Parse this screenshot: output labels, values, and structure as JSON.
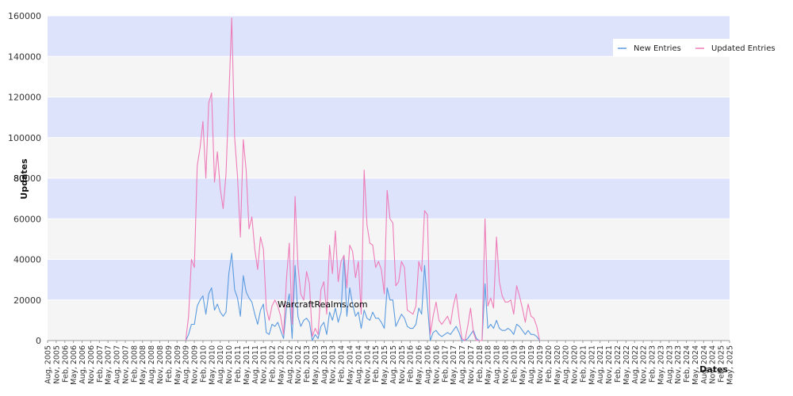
{
  "chart_data": {
    "type": "line",
    "xlabel": "Dates",
    "ylabel": "Updates",
    "ylabel_overlay": "80",
    "watermark": "WarcraftRealms.com",
    "ylim": [
      0,
      160000
    ],
    "y_ticks": [
      0,
      20000,
      40000,
      60000,
      80000,
      100000,
      120000,
      140000,
      160000
    ],
    "y_tick_labels": [
      "0",
      "20000",
      "40000",
      "60000",
      "80000",
      "100000",
      "120000",
      "140000",
      "160000"
    ],
    "x_start": "2005-08",
    "x_end": "2025-05",
    "grid": true,
    "band_colors": [
      "#f5f5f5",
      "#dde3fb"
    ],
    "legend_position": "top-right",
    "series": [
      {
        "name": "New Entries",
        "color": "#5b9bdf",
        "points": [
          [
            "2009-08",
            0
          ],
          [
            "2009-09",
            3000
          ],
          [
            "2009-10",
            8000
          ],
          [
            "2009-11",
            8000
          ],
          [
            "2009-12",
            17000
          ],
          [
            "2010-01",
            20000
          ],
          [
            "2010-02",
            22000
          ],
          [
            "2010-03",
            13000
          ],
          [
            "2010-04",
            23000
          ],
          [
            "2010-05",
            26000
          ],
          [
            "2010-06",
            15000
          ],
          [
            "2010-07",
            18000
          ],
          [
            "2010-08",
            14000
          ],
          [
            "2010-09",
            12000
          ],
          [
            "2010-10",
            14000
          ],
          [
            "2010-11",
            33000
          ],
          [
            "2010-12",
            43000
          ],
          [
            "2011-01",
            25000
          ],
          [
            "2011-02",
            21000
          ],
          [
            "2011-03",
            12000
          ],
          [
            "2011-04",
            32000
          ],
          [
            "2011-05",
            24000
          ],
          [
            "2011-06",
            21000
          ],
          [
            "2011-07",
            19000
          ],
          [
            "2011-08",
            13000
          ],
          [
            "2011-09",
            8000
          ],
          [
            "2011-10",
            15000
          ],
          [
            "2011-11",
            18000
          ],
          [
            "2011-12",
            4000
          ],
          [
            "2012-01",
            3000
          ],
          [
            "2012-02",
            8000
          ],
          [
            "2012-03",
            7000
          ],
          [
            "2012-04",
            9000
          ],
          [
            "2012-05",
            5000
          ],
          [
            "2012-06",
            1000
          ],
          [
            "2012-07",
            16000
          ],
          [
            "2012-08",
            23000
          ],
          [
            "2012-09",
            1000
          ],
          [
            "2012-10",
            37000
          ],
          [
            "2012-11",
            12000
          ],
          [
            "2012-12",
            7000
          ],
          [
            "2013-01",
            10000
          ],
          [
            "2013-02",
            11000
          ],
          [
            "2013-03",
            9000
          ],
          [
            "2013-04",
            0
          ],
          [
            "2013-05",
            3000
          ],
          [
            "2013-06",
            1000
          ],
          [
            "2013-07",
            7000
          ],
          [
            "2013-08",
            9000
          ],
          [
            "2013-09",
            3000
          ],
          [
            "2013-10",
            14000
          ],
          [
            "2013-11",
            10000
          ],
          [
            "2013-12",
            16000
          ],
          [
            "2014-01",
            9000
          ],
          [
            "2014-02",
            14000
          ],
          [
            "2014-03",
            42000
          ],
          [
            "2014-04",
            12000
          ],
          [
            "2014-05",
            26000
          ],
          [
            "2014-06",
            18000
          ],
          [
            "2014-07",
            12000
          ],
          [
            "2014-08",
            14000
          ],
          [
            "2014-09",
            6000
          ],
          [
            "2014-10",
            15000
          ],
          [
            "2014-11",
            11000
          ],
          [
            "2014-12",
            10000
          ],
          [
            "2015-01",
            14000
          ],
          [
            "2015-02",
            11000
          ],
          [
            "2015-03",
            11000
          ],
          [
            "2015-04",
            9000
          ],
          [
            "2015-05",
            6000
          ],
          [
            "2015-06",
            26000
          ],
          [
            "2015-07",
            20000
          ],
          [
            "2015-08",
            20000
          ],
          [
            "2015-09",
            7000
          ],
          [
            "2015-10",
            10000
          ],
          [
            "2015-11",
            13000
          ],
          [
            "2015-12",
            11000
          ],
          [
            "2016-01",
            7000
          ],
          [
            "2016-02",
            6000
          ],
          [
            "2016-03",
            6000
          ],
          [
            "2016-04",
            8000
          ],
          [
            "2016-05",
            16000
          ],
          [
            "2016-06",
            13000
          ],
          [
            "2016-07",
            37000
          ],
          [
            "2016-08",
            18000
          ],
          [
            "2016-09",
            0
          ],
          [
            "2016-10",
            4000
          ],
          [
            "2016-11",
            5000
          ],
          [
            "2016-12",
            3000
          ],
          [
            "2017-01",
            2000
          ],
          [
            "2017-02",
            3000
          ],
          [
            "2017-03",
            4000
          ],
          [
            "2017-04",
            3000
          ],
          [
            "2017-05",
            5000
          ],
          [
            "2017-06",
            7000
          ],
          [
            "2017-07",
            4000
          ],
          [
            "2017-08",
            0
          ],
          [
            "2017-09",
            0
          ],
          [
            "2017-10",
            1000
          ],
          [
            "2017-11",
            3000
          ],
          [
            "2017-12",
            5000
          ],
          [
            "2018-01",
            1000
          ],
          [
            "2018-02",
            0
          ],
          [
            "2018-03",
            0
          ],
          [
            "2018-04",
            28000
          ],
          [
            "2018-05",
            6000
          ],
          [
            "2018-06",
            8000
          ],
          [
            "2018-07",
            6000
          ],
          [
            "2018-08",
            10000
          ],
          [
            "2018-09",
            6000
          ],
          [
            "2018-10",
            5000
          ],
          [
            "2018-11",
            5000
          ],
          [
            "2018-12",
            6000
          ],
          [
            "2019-01",
            5000
          ],
          [
            "2019-02",
            3000
          ],
          [
            "2019-03",
            8000
          ],
          [
            "2019-04",
            7000
          ],
          [
            "2019-05",
            5000
          ],
          [
            "2019-06",
            3000
          ],
          [
            "2019-07",
            5000
          ],
          [
            "2019-08",
            3000
          ],
          [
            "2019-09",
            3000
          ],
          [
            "2019-10",
            2000
          ],
          [
            "2019-11",
            0
          ]
        ]
      },
      {
        "name": "Updated Entries",
        "color": "#ee7cb8",
        "points": [
          [
            "2009-08",
            0
          ],
          [
            "2009-09",
            12000
          ],
          [
            "2009-10",
            40000
          ],
          [
            "2009-11",
            36000
          ],
          [
            "2009-12",
            86000
          ],
          [
            "2010-01",
            95000
          ],
          [
            "2010-02",
            108000
          ],
          [
            "2010-03",
            80000
          ],
          [
            "2010-04",
            117000
          ],
          [
            "2010-05",
            122000
          ],
          [
            "2010-06",
            78000
          ],
          [
            "2010-07",
            93000
          ],
          [
            "2010-08",
            75000
          ],
          [
            "2010-09",
            65000
          ],
          [
            "2010-10",
            82000
          ],
          [
            "2010-11",
            120000
          ],
          [
            "2010-12",
            159000
          ],
          [
            "2011-01",
            100000
          ],
          [
            "2011-02",
            81000
          ],
          [
            "2011-03",
            51000
          ],
          [
            "2011-04",
            99000
          ],
          [
            "2011-05",
            84000
          ],
          [
            "2011-06",
            55000
          ],
          [
            "2011-07",
            61000
          ],
          [
            "2011-08",
            45000
          ],
          [
            "2011-09",
            35000
          ],
          [
            "2011-10",
            51000
          ],
          [
            "2011-11",
            45000
          ],
          [
            "2011-12",
            16000
          ],
          [
            "2012-01",
            10000
          ],
          [
            "2012-02",
            17000
          ],
          [
            "2012-03",
            20000
          ],
          [
            "2012-04",
            17000
          ],
          [
            "2012-05",
            12000
          ],
          [
            "2012-06",
            3000
          ],
          [
            "2012-07",
            30000
          ],
          [
            "2012-08",
            48000
          ],
          [
            "2012-09",
            8000
          ],
          [
            "2012-10",
            71000
          ],
          [
            "2012-11",
            37000
          ],
          [
            "2012-12",
            23000
          ],
          [
            "2013-01",
            20000
          ],
          [
            "2013-02",
            34000
          ],
          [
            "2013-03",
            28000
          ],
          [
            "2013-04",
            2000
          ],
          [
            "2013-05",
            6000
          ],
          [
            "2013-06",
            3000
          ],
          [
            "2013-07",
            25000
          ],
          [
            "2013-08",
            29000
          ],
          [
            "2013-09",
            13000
          ],
          [
            "2013-10",
            47000
          ],
          [
            "2013-11",
            33000
          ],
          [
            "2013-12",
            54000
          ],
          [
            "2014-01",
            29000
          ],
          [
            "2014-02",
            39000
          ],
          [
            "2014-03",
            42000
          ],
          [
            "2014-04",
            26000
          ],
          [
            "2014-05",
            47000
          ],
          [
            "2014-06",
            44000
          ],
          [
            "2014-07",
            31000
          ],
          [
            "2014-08",
            39000
          ],
          [
            "2014-09",
            13000
          ],
          [
            "2014-10",
            84000
          ],
          [
            "2014-11",
            57000
          ],
          [
            "2014-12",
            48000
          ],
          [
            "2015-01",
            47000
          ],
          [
            "2015-02",
            36000
          ],
          [
            "2015-03",
            39000
          ],
          [
            "2015-04",
            35000
          ],
          [
            "2015-05",
            23000
          ],
          [
            "2015-06",
            74000
          ],
          [
            "2015-07",
            60000
          ],
          [
            "2015-08",
            58000
          ],
          [
            "2015-09",
            27000
          ],
          [
            "2015-10",
            29000
          ],
          [
            "2015-11",
            39000
          ],
          [
            "2015-12",
            36000
          ],
          [
            "2016-01",
            15000
          ],
          [
            "2016-02",
            14000
          ],
          [
            "2016-03",
            13000
          ],
          [
            "2016-04",
            17000
          ],
          [
            "2016-05",
            39000
          ],
          [
            "2016-06",
            34000
          ],
          [
            "2016-07",
            64000
          ],
          [
            "2016-08",
            62000
          ],
          [
            "2016-09",
            3000
          ],
          [
            "2016-10",
            12000
          ],
          [
            "2016-11",
            19000
          ],
          [
            "2016-12",
            10000
          ],
          [
            "2017-01",
            8000
          ],
          [
            "2017-02",
            10000
          ],
          [
            "2017-03",
            12000
          ],
          [
            "2017-04",
            8000
          ],
          [
            "2017-05",
            17000
          ],
          [
            "2017-06",
            23000
          ],
          [
            "2017-07",
            11000
          ],
          [
            "2017-08",
            1000
          ],
          [
            "2017-09",
            0
          ],
          [
            "2017-10",
            7000
          ],
          [
            "2017-11",
            16000
          ],
          [
            "2017-12",
            4000
          ],
          [
            "2018-01",
            0
          ],
          [
            "2018-02",
            0
          ],
          [
            "2018-03",
            0
          ],
          [
            "2018-04",
            60000
          ],
          [
            "2018-05",
            17000
          ],
          [
            "2018-06",
            21000
          ],
          [
            "2018-07",
            16000
          ],
          [
            "2018-08",
            51000
          ],
          [
            "2018-09",
            29000
          ],
          [
            "2018-10",
            22000
          ],
          [
            "2018-11",
            19000
          ],
          [
            "2018-12",
            19000
          ],
          [
            "2019-01",
            20000
          ],
          [
            "2019-02",
            13000
          ],
          [
            "2019-03",
            27000
          ],
          [
            "2019-04",
            22000
          ],
          [
            "2019-05",
            16000
          ],
          [
            "2019-06",
            9000
          ],
          [
            "2019-07",
            18000
          ],
          [
            "2019-08",
            12000
          ],
          [
            "2019-09",
            11000
          ],
          [
            "2019-10",
            7000
          ],
          [
            "2019-11",
            0
          ]
        ]
      }
    ]
  }
}
